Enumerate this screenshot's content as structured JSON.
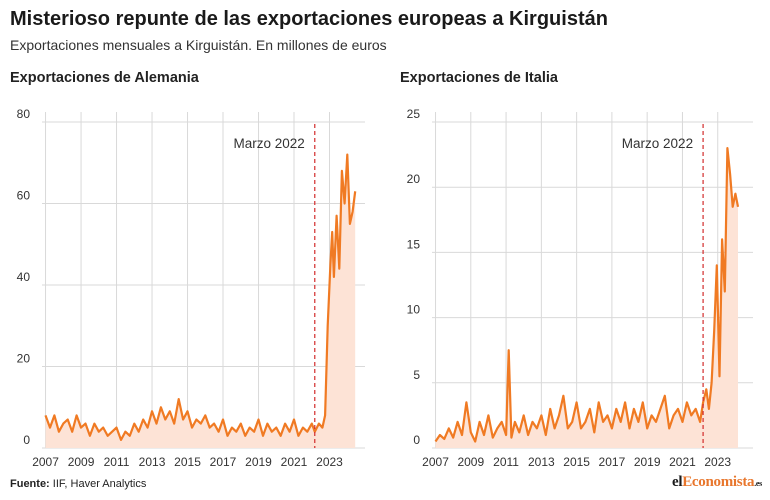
{
  "header": {
    "title": "Misterioso repunte de las exportaciones europeas a Kirguistán",
    "subtitle": "Exportaciones mensuales a Kirguistán. En millones de euros"
  },
  "footer": {
    "source_label": "Fuente:",
    "source_text": " IIF, Haver Analytics",
    "logo_pre": "el",
    "logo_accent": "Economista",
    "logo_suffix": ".es"
  },
  "colors": {
    "line": "#f07a23",
    "area": "#fde3d6",
    "grid": "#d9d9d9",
    "marker": "#d22b2b"
  },
  "chart_data": [
    {
      "type": "area",
      "title": "Exportaciones de Alemania",
      "xlabel": "",
      "ylabel": "",
      "xlim": [
        2006.8,
        2025.0
      ],
      "ylim": [
        0,
        80
      ],
      "yticks": [
        0,
        20,
        40,
        60,
        80
      ],
      "xticks": [
        2007,
        2009,
        2011,
        2013,
        2015,
        2017,
        2019,
        2021,
        2023
      ],
      "annotation": {
        "label": "Marzo 2022",
        "x": 2022.17
      },
      "x": [
        2007.0,
        2007.25,
        2007.5,
        2007.75,
        2008.0,
        2008.25,
        2008.5,
        2008.75,
        2009.0,
        2009.25,
        2009.5,
        2009.75,
        2010.0,
        2010.25,
        2010.5,
        2010.75,
        2011.0,
        2011.25,
        2011.5,
        2011.75,
        2012.0,
        2012.25,
        2012.5,
        2012.75,
        2013.0,
        2013.25,
        2013.5,
        2013.75,
        2014.0,
        2014.25,
        2014.5,
        2014.75,
        2015.0,
        2015.25,
        2015.5,
        2015.75,
        2016.0,
        2016.25,
        2016.5,
        2016.75,
        2017.0,
        2017.25,
        2017.5,
        2017.75,
        2018.0,
        2018.25,
        2018.5,
        2018.75,
        2019.0,
        2019.25,
        2019.5,
        2019.75,
        2020.0,
        2020.25,
        2020.5,
        2020.75,
        2021.0,
        2021.25,
        2021.5,
        2021.75,
        2022.0,
        2022.17,
        2022.4,
        2022.6,
        2022.75,
        2022.9,
        2023.05,
        2023.15,
        2023.25,
        2023.4,
        2023.55,
        2023.7,
        2023.85,
        2024.0,
        2024.15,
        2024.3,
        2024.45
      ],
      "values": [
        8,
        5,
        8,
        4,
        6,
        7,
        4,
        8,
        5,
        6,
        3,
        6,
        4,
        5,
        3,
        4,
        5,
        2,
        4,
        3,
        6,
        4,
        7,
        5,
        9,
        6,
        10,
        7,
        9,
        6,
        12,
        7,
        9,
        5,
        7,
        6,
        8,
        5,
        6,
        4,
        7,
        3,
        5,
        4,
        6,
        3,
        5,
        4,
        7,
        3,
        6,
        4,
        5,
        3,
        6,
        4,
        7,
        3,
        5,
        4,
        6,
        4,
        6,
        5,
        8,
        30,
        45,
        53,
        42,
        57,
        44,
        68,
        60,
        72,
        55,
        58,
        63
      ]
    },
    {
      "type": "area",
      "title": "Exportaciones de Italia",
      "xlabel": "",
      "ylabel": "",
      "xlim": [
        2006.8,
        2025.0
      ],
      "ylim": [
        0,
        25
      ],
      "yticks": [
        0,
        5,
        10,
        15,
        20,
        25
      ],
      "xticks": [
        2007,
        2009,
        2011,
        2013,
        2015,
        2017,
        2019,
        2021,
        2023
      ],
      "annotation": {
        "label": "Marzo 2022",
        "x": 2022.17
      },
      "x": [
        2007.0,
        2007.25,
        2007.5,
        2007.75,
        2008.0,
        2008.25,
        2008.5,
        2008.75,
        2009.0,
        2009.25,
        2009.5,
        2009.75,
        2010.0,
        2010.25,
        2010.5,
        2010.75,
        2011.0,
        2011.15,
        2011.3,
        2011.5,
        2011.75,
        2012.0,
        2012.25,
        2012.5,
        2012.75,
        2013.0,
        2013.25,
        2013.5,
        2013.75,
        2014.0,
        2014.25,
        2014.5,
        2014.75,
        2015.0,
        2015.25,
        2015.5,
        2015.75,
        2016.0,
        2016.25,
        2016.5,
        2016.75,
        2017.0,
        2017.25,
        2017.5,
        2017.75,
        2018.0,
        2018.25,
        2018.5,
        2018.75,
        2019.0,
        2019.25,
        2019.5,
        2019.75,
        2020.0,
        2020.25,
        2020.5,
        2020.75,
        2021.0,
        2021.25,
        2021.5,
        2021.75,
        2022.0,
        2022.17,
        2022.35,
        2022.5,
        2022.65,
        2022.8,
        2022.95,
        2023.1,
        2023.25,
        2023.4,
        2023.55,
        2023.7,
        2023.85,
        2024.0,
        2024.15
      ],
      "values": [
        0.5,
        1.0,
        0.7,
        1.5,
        0.8,
        2.0,
        1.0,
        3.5,
        1.2,
        0.5,
        2.0,
        1.0,
        2.5,
        0.8,
        1.5,
        2.0,
        1.0,
        7.5,
        0.8,
        2.0,
        1.2,
        2.5,
        1.0,
        2.0,
        1.5,
        2.5,
        1.0,
        3.0,
        1.5,
        2.5,
        4.0,
        1.5,
        2.0,
        3.5,
        1.5,
        2.0,
        3.0,
        1.2,
        3.5,
        2.0,
        2.5,
        1.5,
        3.0,
        2.0,
        3.5,
        1.5,
        3.0,
        2.0,
        3.5,
        1.5,
        2.5,
        2.0,
        3.0,
        4.0,
        1.5,
        2.5,
        3.0,
        2.0,
        3.5,
        2.5,
        3.0,
        2.0,
        3.5,
        4.5,
        3.0,
        5.0,
        9.0,
        14.0,
        5.5,
        16.0,
        12.0,
        23.0,
        21.0,
        18.5,
        19.5,
        18.5
      ]
    }
  ]
}
